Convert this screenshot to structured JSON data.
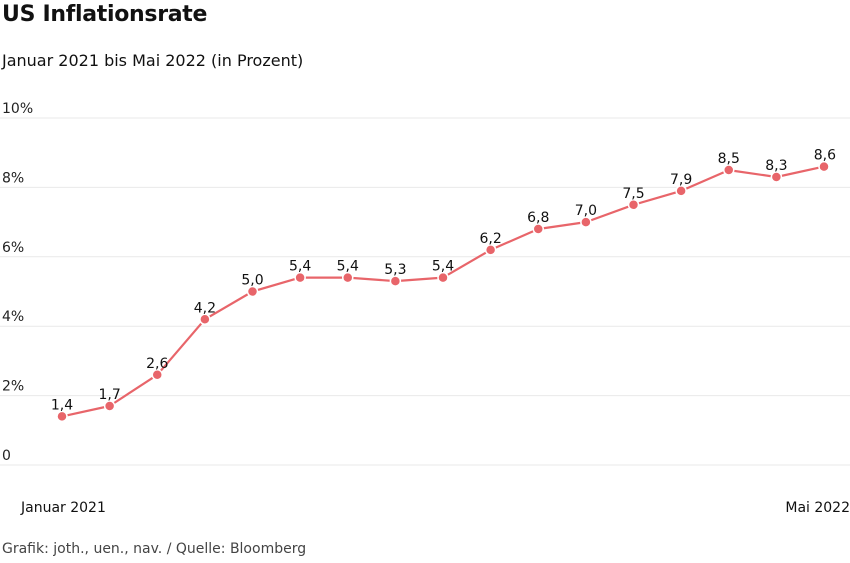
{
  "header": {
    "title": "US Inflationsrate",
    "subtitle": "Januar 2021 bis Mai 2022 (in Prozent)"
  },
  "footer": {
    "source": "Grafik: joth., uen., nav. / Quelle: Bloomberg"
  },
  "chart_data": {
    "type": "line",
    "title": "US Inflationsrate",
    "subtitle": "Januar 2021 bis Mai 2022 (in Prozent)",
    "x": [
      "2021-01",
      "2021-02",
      "2021-03",
      "2021-04",
      "2021-05",
      "2021-06",
      "2021-07",
      "2021-08",
      "2021-09",
      "2021-10",
      "2021-11",
      "2021-12",
      "2022-01",
      "2022-02",
      "2022-03",
      "2022-04",
      "2022-05"
    ],
    "x_tick_labels": [
      {
        "index": 0,
        "label": "Januar 2021"
      },
      {
        "index": 16,
        "label": "Mai 2022"
      }
    ],
    "series": [
      {
        "values": [
          1.4,
          1.7,
          2.6,
          4.2,
          5.0,
          5.4,
          5.4,
          5.3,
          5.4,
          6.2,
          6.8,
          7.0,
          7.5,
          7.9,
          8.5,
          8.3,
          8.6
        ],
        "value_labels": [
          "1,4",
          "1,7",
          "2,6",
          "4,2",
          "5,0",
          "5,4",
          "5,4",
          "5,3",
          "5,4",
          "6,2",
          "6,8",
          "7,0",
          "7,5",
          "7,9",
          "8,5",
          "8,3",
          "8,6"
        ],
        "color": "#e8656a"
      }
    ],
    "y_ticks": [
      {
        "value": 0,
        "label": "0"
      },
      {
        "value": 2,
        "label": "2%"
      },
      {
        "value": 4,
        "label": "4%"
      },
      {
        "value": 6,
        "label": "6%"
      },
      {
        "value": 8,
        "label": "8%"
      },
      {
        "value": 10,
        "label": "10%"
      }
    ],
    "ylim": [
      0,
      10
    ],
    "grid": true,
    "xlabel": "",
    "ylabel": ""
  }
}
